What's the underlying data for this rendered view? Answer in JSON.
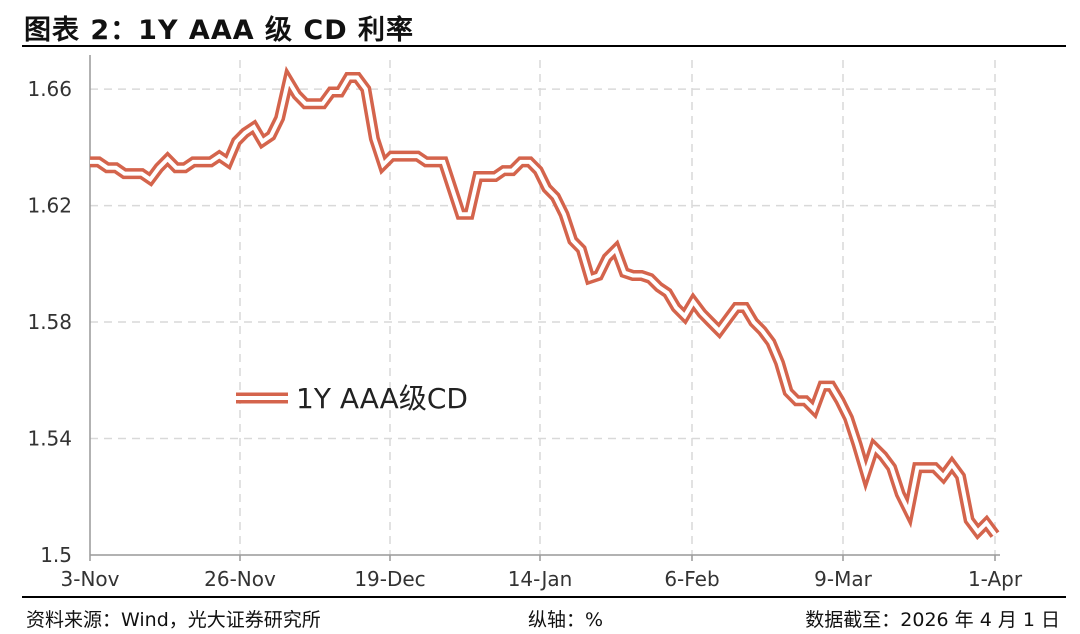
{
  "header": {
    "title": "图表 2：1Y AAA 级 CD 利率"
  },
  "footer": {
    "source": "资料来源：Wind，光大证券研究所",
    "axis_unit": "纵轴：%",
    "data_date": "数据截至：2026 年 4 月 1 日"
  },
  "colors": {
    "series": "#d4644c",
    "grid": "#d9d9d9",
    "axis": "#999999"
  },
  "chart_data": {
    "type": "line",
    "title": "",
    "xlabel": "",
    "ylabel": "",
    "ylim": [
      1.5,
      1.67
    ],
    "yticks": [
      "1.5",
      "1.54",
      "1.58",
      "1.62",
      "1.66"
    ],
    "xticks": [
      "3-Nov",
      "26-Nov",
      "19-Dec",
      "14-Jan",
      "6-Feb",
      "9-Mar",
      "1-Apr"
    ],
    "grid": true,
    "legend_position": "center-left",
    "series": [
      {
        "name": "1Y AAA级CD",
        "x_index": [
          0,
          1,
          2,
          3,
          4,
          5,
          6,
          7,
          8,
          9,
          10,
          11,
          12,
          13,
          14,
          15,
          16,
          17,
          18,
          19,
          20,
          21,
          22,
          23,
          24,
          25,
          26,
          27,
          28,
          29,
          30,
          31,
          32,
          33,
          34,
          35,
          36,
          37,
          38,
          39,
          40,
          41,
          42,
          43,
          44,
          45,
          46,
          47,
          48,
          49,
          50,
          51,
          52,
          53,
          54,
          55,
          56,
          57,
          58,
          59,
          60,
          61,
          62,
          63,
          64,
          65,
          66,
          67,
          68,
          69,
          70,
          71,
          72,
          73,
          74,
          75,
          76,
          77,
          78,
          79,
          80,
          81,
          82,
          83,
          84,
          85,
          86,
          87,
          88,
          89,
          90,
          91,
          92,
          93,
          94,
          95,
          96,
          97,
          98,
          99,
          100,
          101,
          102,
          103,
          104,
          105,
          106,
          107,
          108,
          109,
          110,
          111,
          112,
          113,
          114,
          115,
          116,
          117,
          118,
          119,
          120,
          121,
          122,
          123,
          124,
          125,
          126,
          127,
          128,
          129,
          130,
          131,
          132,
          133,
          134,
          135,
          136,
          137,
          138,
          139,
          140,
          141,
          142,
          143,
          144,
          145,
          146,
          147,
          148,
          149
        ],
        "values": [
          1.635,
          1.635,
          1.633,
          1.633,
          1.631,
          1.631,
          1.631,
          1.629,
          1.633,
          1.636,
          1.633,
          1.633,
          1.635,
          1.635,
          1.635,
          1.637,
          1.635,
          1.642,
          1.645,
          1.647,
          1.642,
          1.644,
          1.65,
          1.663,
          1.658,
          1.655,
          1.655,
          1.655,
          1.659,
          1.659,
          1.664,
          1.664,
          1.66,
          1.643,
          1.634,
          1.637,
          1.637,
          1.637,
          1.637,
          1.635,
          1.635,
          1.635,
          1.626,
          1.617,
          1.617,
          1.63,
          1.63,
          1.63,
          1.632,
          1.632,
          1.635,
          1.635,
          1.632,
          1.626,
          1.623,
          1.617,
          1.608,
          1.605,
          1.595,
          1.596,
          1.602,
          1.605,
          1.597,
          1.596,
          1.596,
          1.595,
          1.592,
          1.59,
          1.585,
          1.582,
          1.587,
          1.583,
          1.58,
          1.577,
          1.581,
          1.585,
          1.585,
          1.58,
          1.577,
          1.573,
          1.566,
          1.556,
          1.553,
          1.553,
          1.55,
          1.558,
          1.558,
          1.553,
          1.547,
          1.538,
          1.528,
          1.537,
          1.534,
          1.53,
          1.521,
          1.515,
          1.53,
          1.53,
          1.53,
          1.527,
          1.531,
          1.527,
          1.512,
          1.508,
          1.511,
          1.507,
          1.509,
          1.509,
          1.509,
          1.509,
          1.509,
          1.509,
          1.509,
          1.509,
          1.509,
          1.509,
          1.509,
          1.509,
          1.509,
          1.509,
          1.509,
          1.509,
          1.509,
          1.509,
          1.509,
          1.509,
          1.509,
          1.509,
          1.509,
          1.509,
          1.509,
          1.509,
          1.509,
          1.509,
          1.509,
          1.509,
          1.509,
          1.509,
          1.509,
          1.509,
          1.509,
          1.509,
          1.509,
          1.509,
          1.509,
          1.509,
          1.509,
          1.509,
          1.509,
          1.509
        ]
      }
    ]
  }
}
